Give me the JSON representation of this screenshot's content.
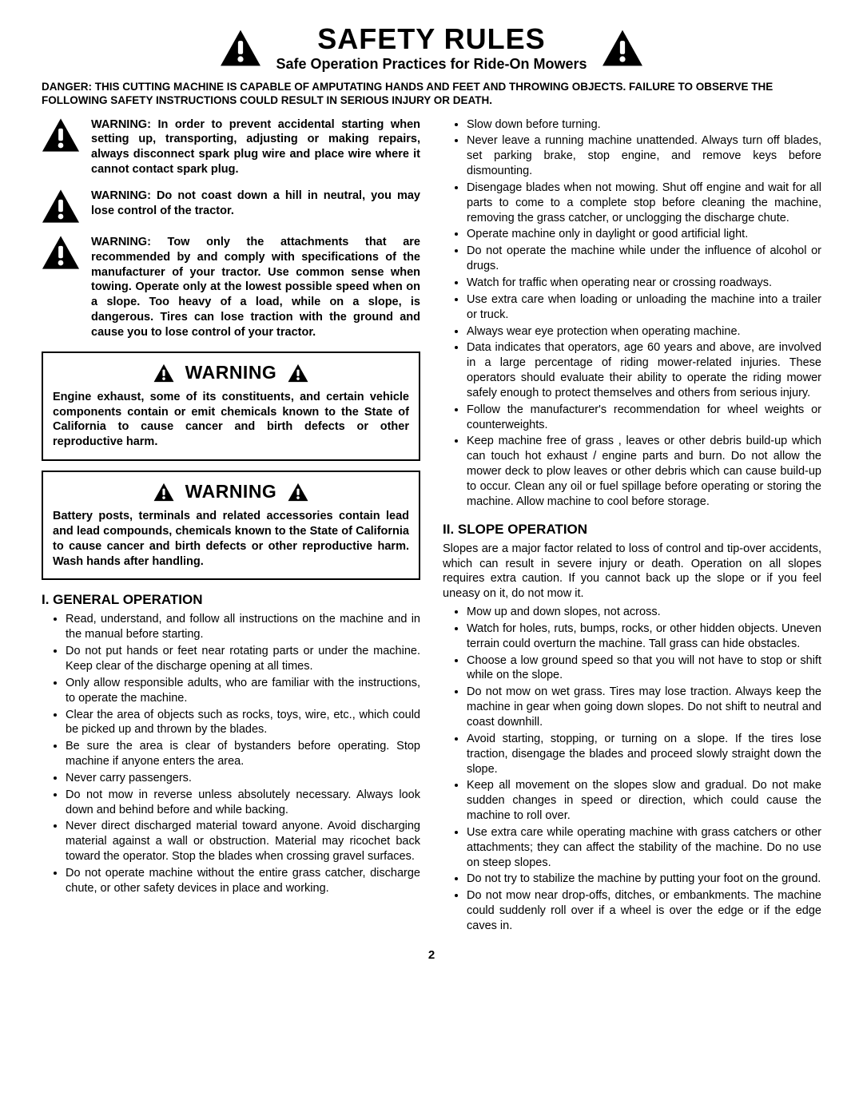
{
  "header": {
    "title": "SAFETY RULES",
    "subtitle": "Safe Operation Practices for Ride-On Mowers"
  },
  "danger_text": "DANGER:  THIS CUTTING MACHINE IS CAPABLE OF AMPUTATING HANDS AND FEET AND THROWING OBJECTS.  FAILURE TO OBSERVE THE FOLLOWING SAFETY INSTRUCTIONS COULD RESULT IN SERIOUS INJURY OR DEATH.",
  "warnings": {
    "w1": "WARNING: In order to prevent accidental starting when setting up, transporting, adjusting or making repairs, always disconnect spark plug wire and place wire where it cannot contact spark plug.",
    "w2": "WARNING: Do not coast down a hill in neutral, you may lose control of the tractor.",
    "w3": "WARNING: Tow only the attachments that are recommended by and comply with specifications of the manufacturer of your tractor. Use common sense when towing. Operate only at the lowest possible speed when on a slope.  Too heavy of a load, while on a slope, is dangerous.  Tires can lose traction with the ground and cause you to lose control of your tractor."
  },
  "boxes": {
    "label": "WARNING",
    "b1": "Engine exhaust, some of its constituents, and certain vehicle components contain or emit chemicals known to the State of California to cause cancer and birth defects or other reproductive harm.",
    "b2": "Battery posts, terminals and related accessories contain lead and lead compounds, chemicals known to the State of California to cause cancer and birth defects or other reproductive harm. Wash hands after handling."
  },
  "sections": {
    "s1_title": "I. GENERAL OPERATION",
    "s1_items": [
      "Read, understand, and follow all instructions on the machine and in the manual before starting.",
      "Do not put hands or feet near rotating parts or under the machine. Keep clear of the discharge opening at all times.",
      "Only allow responsible adults, who are familiar with the instructions, to operate the machine.",
      "Clear the area of objects such as rocks, toys, wire, etc., which could be picked up and thrown by the blades.",
      "Be sure the area is clear of bystanders before operating.  Stop machine if anyone enters the area.",
      "Never carry passengers.",
      "Do not mow in reverse unless absolutely necessary. Always look down and behind before and while backing.",
      "Never direct discharged material toward anyone. Avoid discharging material against a wall or obstruction. Material may ricochet back toward the operator. Stop the blades when crossing gravel surfaces.",
      "Do not operate machine without the entire grass catcher, discharge chute, or other safety devices in place and working."
    ],
    "s1_items_right": [
      "Slow down before turning.",
      "Never leave a running machine unattended.  Always turn off blades, set parking brake, stop engine, and remove keys before dismounting.",
      "Disengage blades when not mowing. Shut off engine and wait for all parts to come to a complete stop before cleaning the machine, removing the grass catcher, or unclogging the discharge chute.",
      "Operate machine only in daylight or good artificial light.",
      "Do not operate the machine while under the influence of alcohol or drugs.",
      "Watch for traffic when operating near or crossing roadways.",
      "Use extra care when loading or unloading the machine into a trailer or truck.",
      "Always wear eye protection when operating machine.",
      "Data indicates that operators, age 60 years and above, are involved in a large percentage of riding mower-related injuries.  These operators should evaluate their ability to operate the riding mower safely enough to protect themselves and others from serious injury.",
      "Follow the manufacturer's recommendation for wheel weights or counterweights.",
      "Keep machine free of grass , leaves or other debris build-up which can touch hot exhaust / engine parts and burn. Do not allow the mower deck to plow leaves or other debris which can cause build-up to occur. Clean any oil or fuel spillage before operating or storing the machine. Allow machine to cool before storage."
    ],
    "s2_title": "II. SLOPE OPERATION",
    "s2_intro": "Slopes are a major factor related to loss of control and tip-over accidents, which can result in severe injury or death.  Operation on all slopes requires extra caution.  If you cannot back up the slope or if you feel uneasy on it, do not mow it.",
    "s2_items": [
      "Mow up and down slopes, not across.",
      "Watch for holes, ruts, bumps, rocks, or other hidden objects.  Uneven terrain could overturn the machine. Tall grass can hide obstacles.",
      "Choose a low ground speed so that you will not have to stop or shift while on the slope.",
      "Do not mow on wet grass. Tires may lose traction. Always keep the machine in gear when going down slopes. Do not shift to neutral and coast downhill.",
      "Avoid starting, stopping, or turning on a slope.  If the tires lose traction,  disengage the blades and proceed slowly straight down the slope.",
      "Keep all movement on the slopes slow and gradual. Do not make sudden changes in speed or direction, which could cause the machine to roll over.",
      "Use extra care while operating machine with grass catchers or other attachments; they can affect the stability of the machine. Do no use on steep slopes.",
      "Do not  try to stabilize the machine by putting your foot on the ground.",
      "Do not mow near drop-offs, ditches, or embankments. The machine could suddenly roll over if a wheel is over the edge or if the edge caves in."
    ]
  },
  "page_number": "2",
  "icon_sizes": {
    "large": 52,
    "medium": 48,
    "small": 26
  }
}
